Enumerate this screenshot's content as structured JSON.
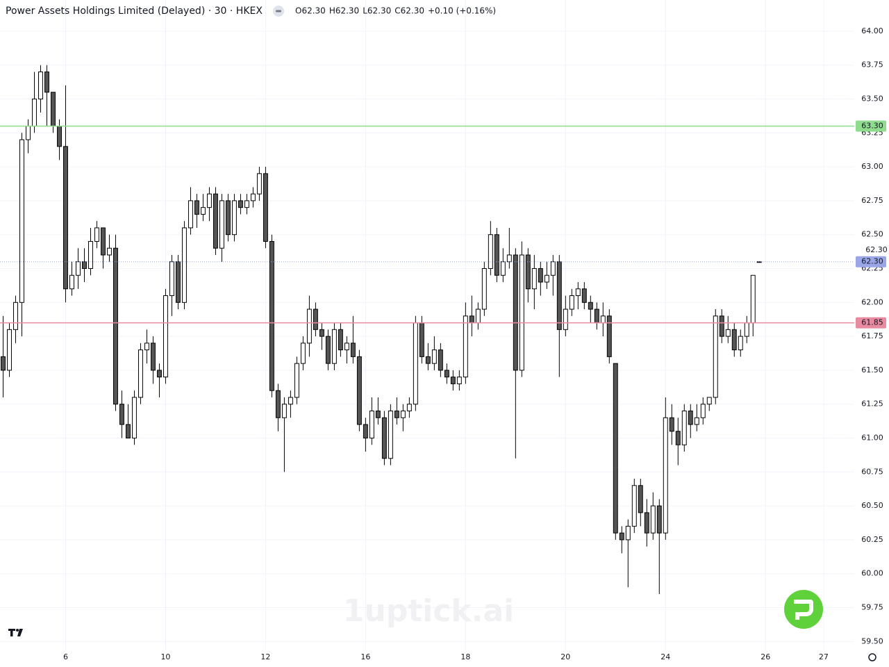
{
  "chart_data": {
    "type": "candlestick",
    "title": "Power Assets Holdings Limited (Delayed) · 30 · HKEX",
    "legend": [
      "O62.30",
      "H62.30",
      "L62.30",
      "C62.30",
      "+0.10 (+0.16%)"
    ],
    "watermark": "1uptick.ai",
    "scale_note": "62.30",
    "up_color": "#ffffff",
    "down_color": "#555555",
    "border_color": "#000000",
    "ylim": [
      59.44,
      64.23
    ],
    "yticks": [
      {
        "value": 59.5,
        "label": "59.50"
      },
      {
        "value": 59.75,
        "label": "59.75"
      },
      {
        "value": 60,
        "label": "60.00"
      },
      {
        "value": 60.25,
        "label": "60.25"
      },
      {
        "value": 60.5,
        "label": "60.50"
      },
      {
        "value": 60.75,
        "label": "60.75"
      },
      {
        "value": 61,
        "label": "61.00"
      },
      {
        "value": 61.25,
        "label": "61.25"
      },
      {
        "value": 61.5,
        "label": "61.50"
      },
      {
        "value": 61.75,
        "label": "61.75"
      },
      {
        "value": 62,
        "label": "62.00"
      },
      {
        "value": 62.25,
        "label": "62.25"
      },
      {
        "value": 62.5,
        "label": "62.50"
      },
      {
        "value": 62.75,
        "label": "62.75"
      },
      {
        "value": 63,
        "label": "63.00"
      },
      {
        "value": 63.25,
        "label": "63.25"
      },
      {
        "value": 63.5,
        "label": "63.50"
      },
      {
        "value": 63.75,
        "label": "63.75"
      },
      {
        "value": 64,
        "label": "64.00"
      }
    ],
    "xlim": [
      -0.5,
      136.2
    ],
    "xticks": [
      {
        "value": 10,
        "label": "6"
      },
      {
        "value": 26,
        "label": "10"
      },
      {
        "value": 42,
        "label": "12"
      },
      {
        "value": 58,
        "label": "16"
      },
      {
        "value": 74,
        "label": "18"
      },
      {
        "value": 90,
        "label": "20"
      },
      {
        "value": 106,
        "label": "24"
      },
      {
        "value": 122,
        "label": "26"
      },
      {
        "value": 131.3,
        "label": "27"
      }
    ],
    "grid": true,
    "price_lines": [
      {
        "value": 63.3,
        "label": "63.30",
        "color": "#8fdc8f",
        "style": "solid"
      },
      {
        "value": 62.3,
        "label": "62.30",
        "color": "#9aa6e8",
        "style": "dotted"
      },
      {
        "value": 61.85,
        "label": "61.85",
        "color": "#e88aa0",
        "style": "solid"
      }
    ],
    "ohlc": [
      [
        61.6,
        61.9,
        61.3,
        61.5
      ],
      [
        61.5,
        61.85,
        61.45,
        61.8
      ],
      [
        61.8,
        62.05,
        61.7,
        62.0
      ],
      [
        62.0,
        63.25,
        61.75,
        63.2
      ],
      [
        63.2,
        63.35,
        63.1,
        63.3
      ],
      [
        63.3,
        63.7,
        63.25,
        63.5
      ],
      [
        63.5,
        63.75,
        63.4,
        63.7
      ],
      [
        63.7,
        63.75,
        63.3,
        63.55
      ],
      [
        63.55,
        63.55,
        63.25,
        63.3
      ],
      [
        63.3,
        63.35,
        63.05,
        63.15
      ],
      [
        63.15,
        63.6,
        62.0,
        62.1
      ],
      [
        62.1,
        62.3,
        62.05,
        62.2
      ],
      [
        62.2,
        62.4,
        62.1,
        62.3
      ],
      [
        62.3,
        62.4,
        62.15,
        62.25
      ],
      [
        62.25,
        62.55,
        62.2,
        62.45
      ],
      [
        62.45,
        62.6,
        62.4,
        62.55
      ],
      [
        62.55,
        62.55,
        62.25,
        62.35
      ],
      [
        62.35,
        62.5,
        62.3,
        62.4
      ],
      [
        62.4,
        62.5,
        61.2,
        61.25
      ],
      [
        61.25,
        61.35,
        61.0,
        61.1
      ],
      [
        61.1,
        61.25,
        61.0,
        61.0
      ],
      [
        61.0,
        61.35,
        60.95,
        61.3
      ],
      [
        61.3,
        61.7,
        61.25,
        61.65
      ],
      [
        61.65,
        61.8,
        61.55,
        61.7
      ],
      [
        61.7,
        61.75,
        61.4,
        61.5
      ],
      [
        61.5,
        61.55,
        61.3,
        61.45
      ],
      [
        61.45,
        62.1,
        61.4,
        62.05
      ],
      [
        62.05,
        62.35,
        61.9,
        62.3
      ],
      [
        62.3,
        62.35,
        61.95,
        62.0
      ],
      [
        62.0,
        62.6,
        61.95,
        62.55
      ],
      [
        62.55,
        62.85,
        62.5,
        62.75
      ],
      [
        62.75,
        62.8,
        62.55,
        62.65
      ],
      [
        62.65,
        62.8,
        62.6,
        62.7
      ],
      [
        62.7,
        62.85,
        62.6,
        62.8
      ],
      [
        62.8,
        62.85,
        62.35,
        62.4
      ],
      [
        62.4,
        62.8,
        62.3,
        62.75
      ],
      [
        62.75,
        62.8,
        62.45,
        62.5
      ],
      [
        62.5,
        62.8,
        62.45,
        62.75
      ],
      [
        62.75,
        62.8,
        62.65,
        62.7
      ],
      [
        62.7,
        62.8,
        62.65,
        62.75
      ],
      [
        62.75,
        62.85,
        62.7,
        62.8
      ],
      [
        62.8,
        63.0,
        62.75,
        62.95
      ],
      [
        62.95,
        63.0,
        62.4,
        62.45
      ],
      [
        62.45,
        62.5,
        61.3,
        61.35
      ],
      [
        61.35,
        61.4,
        61.05,
        61.15
      ],
      [
        61.15,
        61.3,
        60.75,
        61.25
      ],
      [
        61.25,
        61.35,
        61.15,
        61.3
      ],
      [
        61.3,
        61.6,
        61.25,
        61.55
      ],
      [
        61.55,
        61.75,
        61.5,
        61.7
      ],
      [
        61.7,
        62.05,
        61.6,
        61.95
      ],
      [
        61.95,
        62.0,
        61.75,
        61.8
      ],
      [
        61.8,
        61.85,
        61.65,
        61.75
      ],
      [
        61.75,
        61.8,
        61.5,
        61.55
      ],
      [
        61.55,
        61.85,
        61.5,
        61.8
      ],
      [
        61.8,
        61.85,
        61.6,
        61.65
      ],
      [
        61.65,
        61.75,
        61.55,
        61.7
      ],
      [
        61.7,
        61.9,
        61.55,
        61.6
      ],
      [
        61.6,
        61.65,
        61.05,
        61.1
      ],
      [
        61.1,
        61.15,
        60.9,
        61.0
      ],
      [
        61.0,
        61.3,
        60.95,
        61.2
      ],
      [
        61.2,
        61.3,
        61.1,
        61.15
      ],
      [
        61.15,
        61.2,
        60.8,
        60.85
      ],
      [
        60.85,
        61.25,
        60.8,
        61.2
      ],
      [
        61.2,
        61.3,
        61.1,
        61.15
      ],
      [
        61.15,
        61.25,
        61.05,
        61.2
      ],
      [
        61.2,
        61.3,
        61.15,
        61.25
      ],
      [
        61.25,
        61.9,
        61.2,
        61.85
      ],
      [
        61.85,
        61.9,
        61.55,
        61.6
      ],
      [
        61.6,
        61.7,
        61.5,
        61.55
      ],
      [
        61.55,
        61.75,
        61.5,
        61.65
      ],
      [
        61.65,
        61.7,
        61.45,
        61.5
      ],
      [
        61.5,
        61.55,
        61.4,
        61.45
      ],
      [
        61.45,
        61.5,
        61.35,
        61.4
      ],
      [
        61.4,
        61.5,
        61.35,
        61.45
      ],
      [
        61.45,
        62.0,
        61.4,
        61.9
      ],
      [
        61.9,
        62.05,
        61.75,
        61.85
      ],
      [
        61.85,
        62.0,
        61.8,
        61.95
      ],
      [
        61.95,
        62.3,
        61.9,
        62.25
      ],
      [
        62.25,
        62.6,
        62.2,
        62.5
      ],
      [
        62.5,
        62.55,
        62.15,
        62.2
      ],
      [
        62.2,
        62.4,
        62.15,
        62.3
      ],
      [
        62.3,
        62.55,
        62.25,
        62.35
      ],
      [
        62.35,
        62.4,
        60.85,
        61.5
      ],
      [
        61.5,
        62.45,
        61.45,
        62.35
      ],
      [
        62.35,
        62.4,
        62.0,
        62.1
      ],
      [
        62.1,
        62.35,
        61.95,
        62.25
      ],
      [
        62.25,
        62.3,
        62.05,
        62.15
      ],
      [
        62.15,
        62.3,
        62.1,
        62.2
      ],
      [
        62.2,
        62.35,
        62.05,
        62.3
      ],
      [
        62.3,
        62.35,
        61.45,
        61.8
      ],
      [
        61.8,
        62.05,
        61.75,
        61.95
      ],
      [
        61.95,
        62.1,
        61.9,
        62.05
      ],
      [
        62.05,
        62.15,
        61.95,
        62.1
      ],
      [
        62.1,
        62.15,
        61.95,
        62.0
      ],
      [
        62.0,
        62.05,
        61.85,
        61.95
      ],
      [
        61.95,
        62.0,
        61.8,
        61.85
      ],
      [
        61.85,
        62.0,
        61.75,
        61.9
      ],
      [
        61.9,
        61.95,
        61.55,
        61.6
      ],
      [
        61.55,
        61.55,
        60.25,
        60.3
      ],
      [
        60.3,
        60.35,
        60.15,
        60.25
      ],
      [
        60.25,
        60.4,
        59.9,
        60.35
      ],
      [
        60.35,
        60.7,
        60.3,
        60.65
      ],
      [
        60.65,
        60.7,
        60.35,
        60.45
      ],
      [
        60.45,
        60.55,
        60.2,
        60.3
      ],
      [
        60.3,
        60.6,
        60.25,
        60.5
      ],
      [
        60.5,
        60.55,
        59.85,
        60.3
      ],
      [
        60.3,
        61.3,
        60.25,
        61.15
      ],
      [
        61.15,
        61.25,
        60.95,
        61.05
      ],
      [
        61.05,
        61.15,
        60.8,
        60.95
      ],
      [
        60.95,
        61.25,
        60.9,
        61.2
      ],
      [
        61.2,
        61.25,
        61.0,
        61.1
      ],
      [
        61.1,
        61.25,
        61.05,
        61.15
      ],
      [
        61.15,
        61.3,
        61.1,
        61.25
      ],
      [
        61.25,
        61.3,
        61.2,
        61.3
      ],
      [
        61.3,
        61.95,
        61.25,
        61.9
      ],
      [
        61.9,
        61.95,
        61.7,
        61.75
      ],
      [
        61.75,
        61.9,
        61.7,
        61.8
      ],
      [
        61.8,
        61.85,
        61.6,
        61.65
      ],
      [
        61.65,
        61.8,
        61.6,
        61.75
      ],
      [
        61.75,
        61.9,
        61.7,
        61.85
      ],
      [
        61.85,
        62.2,
        61.75,
        62.2
      ],
      [
        62.3,
        62.3,
        62.3,
        62.3
      ]
    ]
  }
}
